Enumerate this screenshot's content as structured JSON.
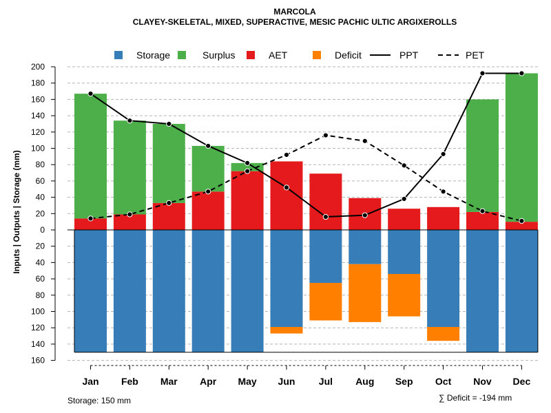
{
  "chart_data": {
    "type": "bar",
    "title": "MARCOLA",
    "subtitle": "CLAYEY-SKELETAL, MIXED, SUPERACTIVE, MESIC PACHIC ULTIC ARGIXEROLLS",
    "ylabel": "Inputs | Outputs | Storage     (mm)",
    "ylim": [
      -160,
      200
    ],
    "yticks": [
      200,
      180,
      160,
      140,
      120,
      100,
      80,
      60,
      40,
      20,
      0,
      -20,
      -40,
      -60,
      -80,
      -100,
      -120,
      -140,
      -160
    ],
    "ytick_labels": [
      "200",
      "180",
      "160",
      "140",
      "120",
      "100",
      "80",
      "60",
      "40",
      "20",
      "0",
      "20",
      "40",
      "60",
      "80",
      "100",
      "120",
      "140",
      "160"
    ],
    "categories": [
      "Jan",
      "Feb",
      "Mar",
      "Apr",
      "May",
      "Jun",
      "Jul",
      "Aug",
      "Sep",
      "Oct",
      "Nov",
      "Dec"
    ],
    "legend": {
      "position": "top",
      "entries": [
        {
          "label": "Storage",
          "kind": "square",
          "color": "#377eb8"
        },
        {
          "label": "Surplus",
          "kind": "square",
          "color": "#4daf4a"
        },
        {
          "label": "AET",
          "kind": "square",
          "color": "#e41a1c"
        },
        {
          "label": "Deficit",
          "kind": "square",
          "color": "#ff7f00"
        },
        {
          "label": "PPT",
          "kind": "solid-line",
          "color": "#000000"
        },
        {
          "label": "PET",
          "kind": "dashed-line",
          "color": "#000000"
        }
      ]
    },
    "colors": {
      "storage": "#377eb8",
      "surplus": "#4daf4a",
      "aet": "#e41a1c",
      "deficit": "#ff7f00",
      "line": "#000000",
      "grid": "#b3b3b3"
    },
    "series": [
      {
        "name": "AET",
        "values": [
          14,
          19,
          33,
          47,
          72,
          84,
          69,
          39,
          26,
          28,
          22,
          10
        ]
      },
      {
        "name": "Surplus",
        "values": [
          153,
          115,
          97,
          56,
          10,
          0,
          0,
          0,
          0,
          0,
          138,
          182
        ]
      },
      {
        "name": "Storage",
        "values": [
          150,
          150,
          150,
          150,
          150,
          119,
          65,
          42,
          54,
          119,
          150,
          150
        ]
      },
      {
        "name": "Deficit",
        "values": [
          0,
          0,
          0,
          0,
          0,
          8,
          46,
          71,
          52,
          17,
          0,
          0
        ]
      },
      {
        "name": "PPT",
        "values": [
          167,
          134,
          130,
          103,
          82,
          52,
          16,
          18,
          38,
          93,
          192,
          192
        ]
      },
      {
        "name": "PET",
        "values": [
          14,
          19,
          33,
          47,
          72,
          92,
          116,
          109,
          79,
          47,
          23,
          11
        ]
      }
    ],
    "storage_note": "Storage: 150 mm",
    "deficit_note": "∑ Deficit = -194 mm"
  }
}
